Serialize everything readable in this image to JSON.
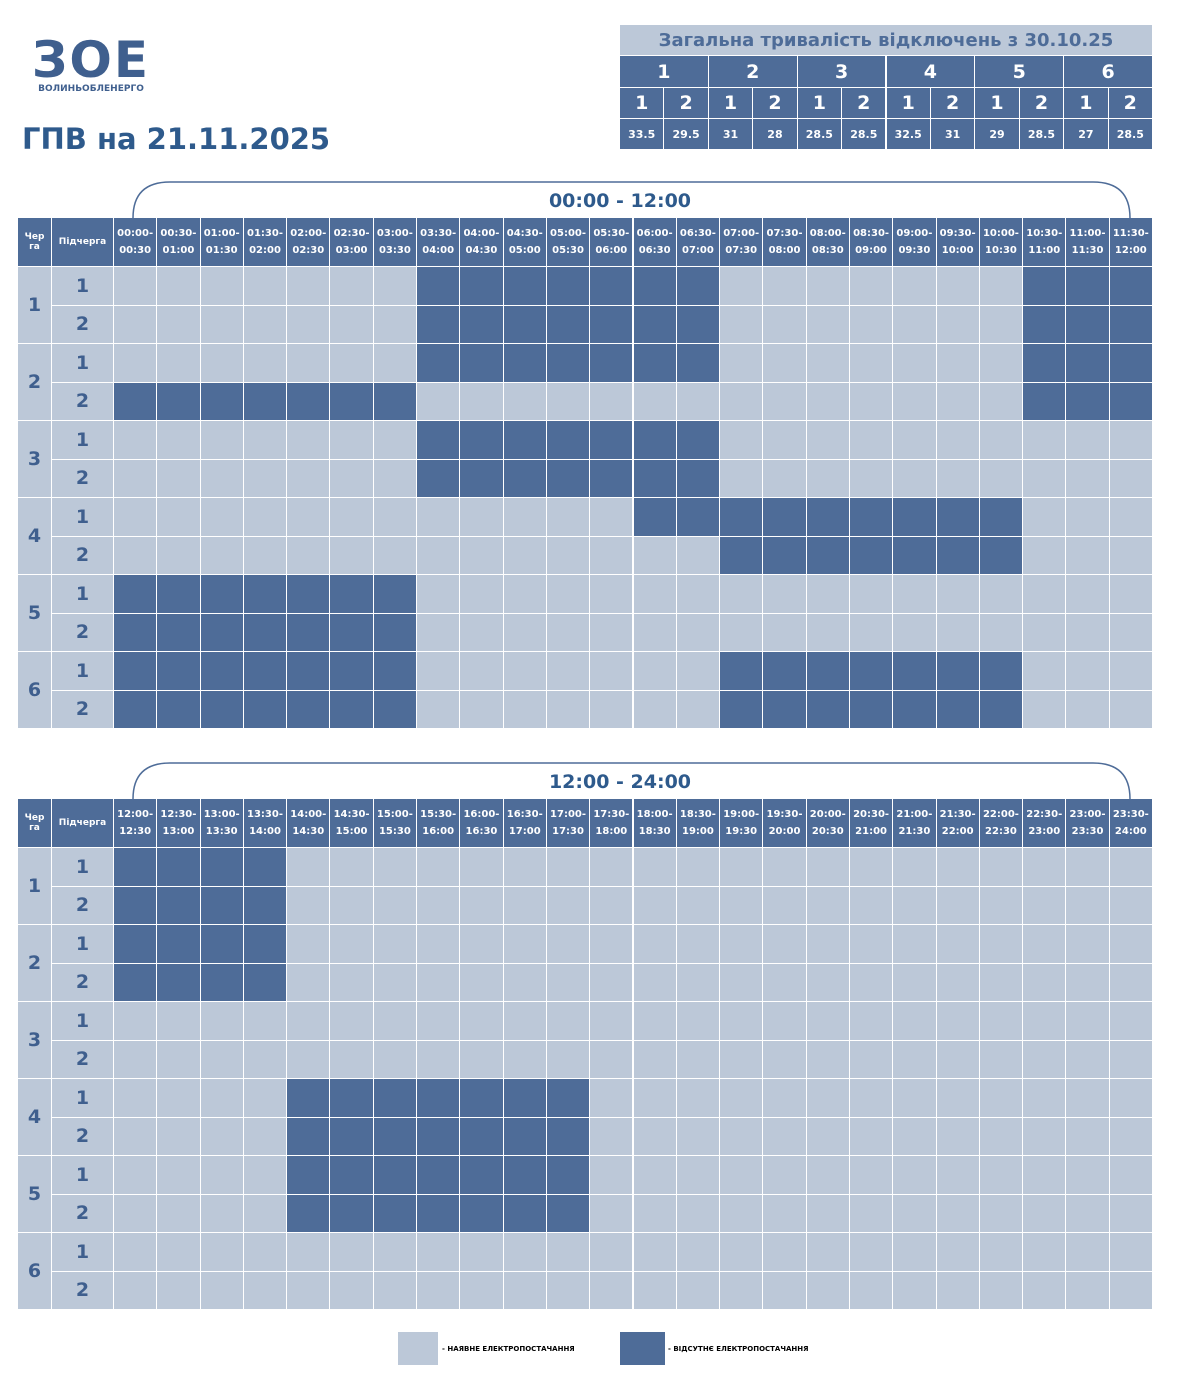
{
  "logo": {
    "mark": "ЗОЕ",
    "name": "ВОЛИНЬОБЛЕНЕРГО"
  },
  "title": "ГПВ на 21.11.2025",
  "summary": {
    "title": "Загальна тривалість відключень з 30.10.25",
    "groups": [
      {
        "queue": "1",
        "subs": [
          "1",
          "2"
        ],
        "values": [
          33.5,
          29.5
        ]
      },
      {
        "queue": "2",
        "subs": [
          "1",
          "2"
        ],
        "values": [
          31,
          28
        ]
      },
      {
        "queue": "3",
        "subs": [
          "1",
          "2"
        ],
        "values": [
          28.5,
          28.5
        ]
      },
      {
        "queue": "4",
        "subs": [
          "1",
          "2"
        ],
        "values": [
          32.5,
          31
        ]
      },
      {
        "queue": "5",
        "subs": [
          "1",
          "2"
        ],
        "values": [
          29,
          28.5
        ]
      },
      {
        "queue": "6",
        "subs": [
          "1",
          "2"
        ],
        "values": [
          27,
          28.5
        ]
      }
    ]
  },
  "halves": [
    {
      "range": "00:00 - 12:00",
      "queue_header": "Черга",
      "sub_header": "Підчерга",
      "slots": [
        "00:00-00:30",
        "00:30-01:00",
        "01:00-01:30",
        "01:30-02:00",
        "02:00-02:30",
        "02:30-03:00",
        "03:00-03:30",
        "03:30-04:00",
        "04:00-04:30",
        "04:30-05:00",
        "05:00-05:30",
        "05:30-06:00",
        "06:00-06:30",
        "06:30-07:00",
        "07:00-07:30",
        "07:30-08:00",
        "08:00-08:30",
        "08:30-09:00",
        "09:00-09:30",
        "09:30-10:00",
        "10:00-10:30",
        "10:30-11:00",
        "11:00-11:30",
        "11:30-12:00"
      ],
      "queues": [
        {
          "label": "1",
          "subs": [
            {
              "label": "1",
              "off": [
                0,
                0,
                0,
                0,
                0,
                0,
                0,
                1,
                1,
                1,
                1,
                1,
                1,
                1,
                0,
                0,
                0,
                0,
                0,
                0,
                0,
                1,
                1,
                1
              ]
            },
            {
              "label": "2",
              "off": [
                0,
                0,
                0,
                0,
                0,
                0,
                0,
                1,
                1,
                1,
                1,
                1,
                1,
                1,
                0,
                0,
                0,
                0,
                0,
                0,
                0,
                1,
                1,
                1
              ]
            }
          ]
        },
        {
          "label": "2",
          "subs": [
            {
              "label": "1",
              "off": [
                0,
                0,
                0,
                0,
                0,
                0,
                0,
                1,
                1,
                1,
                1,
                1,
                1,
                1,
                0,
                0,
                0,
                0,
                0,
                0,
                0,
                1,
                1,
                1
              ]
            },
            {
              "label": "2",
              "off": [
                1,
                1,
                1,
                1,
                1,
                1,
                1,
                0,
                0,
                0,
                0,
                0,
                0,
                0,
                0,
                0,
                0,
                0,
                0,
                0,
                0,
                1,
                1,
                1
              ]
            }
          ]
        },
        {
          "label": "3",
          "subs": [
            {
              "label": "1",
              "off": [
                0,
                0,
                0,
                0,
                0,
                0,
                0,
                1,
                1,
                1,
                1,
                1,
                1,
                1,
                0,
                0,
                0,
                0,
                0,
                0,
                0,
                0,
                0,
                0
              ]
            },
            {
              "label": "2",
              "off": [
                0,
                0,
                0,
                0,
                0,
                0,
                0,
                1,
                1,
                1,
                1,
                1,
                1,
                1,
                0,
                0,
                0,
                0,
                0,
                0,
                0,
                0,
                0,
                0
              ]
            }
          ]
        },
        {
          "label": "4",
          "subs": [
            {
              "label": "1",
              "off": [
                0,
                0,
                0,
                0,
                0,
                0,
                0,
                0,
                0,
                0,
                0,
                0,
                1,
                1,
                1,
                1,
                1,
                1,
                1,
                1,
                1,
                0,
                0,
                0
              ]
            },
            {
              "label": "2",
              "off": [
                0,
                0,
                0,
                0,
                0,
                0,
                0,
                0,
                0,
                0,
                0,
                0,
                0,
                0,
                1,
                1,
                1,
                1,
                1,
                1,
                1,
                0,
                0,
                0
              ]
            }
          ]
        },
        {
          "label": "5",
          "subs": [
            {
              "label": "1",
              "off": [
                1,
                1,
                1,
                1,
                1,
                1,
                1,
                0,
                0,
                0,
                0,
                0,
                0,
                0,
                0,
                0,
                0,
                0,
                0,
                0,
                0,
                0,
                0,
                0
              ]
            },
            {
              "label": "2",
              "off": [
                1,
                1,
                1,
                1,
                1,
                1,
                1,
                0,
                0,
                0,
                0,
                0,
                0,
                0,
                0,
                0,
                0,
                0,
                0,
                0,
                0,
                0,
                0,
                0
              ]
            }
          ]
        },
        {
          "label": "6",
          "subs": [
            {
              "label": "1",
              "off": [
                1,
                1,
                1,
                1,
                1,
                1,
                1,
                0,
                0,
                0,
                0,
                0,
                0,
                0,
                1,
                1,
                1,
                1,
                1,
                1,
                1,
                0,
                0,
                0
              ]
            },
            {
              "label": "2",
              "off": [
                1,
                1,
                1,
                1,
                1,
                1,
                1,
                0,
                0,
                0,
                0,
                0,
                0,
                0,
                1,
                1,
                1,
                1,
                1,
                1,
                1,
                0,
                0,
                0
              ]
            }
          ]
        }
      ]
    },
    {
      "range": "12:00 - 24:00",
      "queue_header": "Черга",
      "sub_header": "Підчерга",
      "slots": [
        "12:00-12:30",
        "12:30-13:00",
        "13:00-13:30",
        "13:30-14:00",
        "14:00-14:30",
        "14:30-15:00",
        "15:00-15:30",
        "15:30-16:00",
        "16:00-16:30",
        "16:30-17:00",
        "17:00-17:30",
        "17:30-18:00",
        "18:00-18:30",
        "18:30-19:00",
        "19:00-19:30",
        "19:30-20:00",
        "20:00-20:30",
        "20:30-21:00",
        "21:00-21:30",
        "21:30-22:00",
        "22:00-22:30",
        "22:30-23:00",
        "23:00-23:30",
        "23:30-24:00"
      ],
      "queues": [
        {
          "label": "1",
          "subs": [
            {
              "label": "1",
              "off": [
                1,
                1,
                1,
                1,
                0,
                0,
                0,
                0,
                0,
                0,
                0,
                0,
                0,
                0,
                0,
                0,
                0,
                0,
                0,
                0,
                0,
                0,
                0,
                0
              ]
            },
            {
              "label": "2",
              "off": [
                1,
                1,
                1,
                1,
                0,
                0,
                0,
                0,
                0,
                0,
                0,
                0,
                0,
                0,
                0,
                0,
                0,
                0,
                0,
                0,
                0,
                0,
                0,
                0
              ]
            }
          ]
        },
        {
          "label": "2",
          "subs": [
            {
              "label": "1",
              "off": [
                1,
                1,
                1,
                1,
                0,
                0,
                0,
                0,
                0,
                0,
                0,
                0,
                0,
                0,
                0,
                0,
                0,
                0,
                0,
                0,
                0,
                0,
                0,
                0
              ]
            },
            {
              "label": "2",
              "off": [
                1,
                1,
                1,
                1,
                0,
                0,
                0,
                0,
                0,
                0,
                0,
                0,
                0,
                0,
                0,
                0,
                0,
                0,
                0,
                0,
                0,
                0,
                0,
                0
              ]
            }
          ]
        },
        {
          "label": "3",
          "subs": [
            {
              "label": "1",
              "off": [
                0,
                0,
                0,
                0,
                0,
                0,
                0,
                0,
                0,
                0,
                0,
                0,
                0,
                0,
                0,
                0,
                0,
                0,
                0,
                0,
                0,
                0,
                0,
                0
              ]
            },
            {
              "label": "2",
              "off": [
                0,
                0,
                0,
                0,
                0,
                0,
                0,
                0,
                0,
                0,
                0,
                0,
                0,
                0,
                0,
                0,
                0,
                0,
                0,
                0,
                0,
                0,
                0,
                0
              ]
            }
          ]
        },
        {
          "label": "4",
          "subs": [
            {
              "label": "1",
              "off": [
                0,
                0,
                0,
                0,
                1,
                1,
                1,
                1,
                1,
                1,
                1,
                0,
                0,
                0,
                0,
                0,
                0,
                0,
                0,
                0,
                0,
                0,
                0,
                0
              ]
            },
            {
              "label": "2",
              "off": [
                0,
                0,
                0,
                0,
                1,
                1,
                1,
                1,
                1,
                1,
                1,
                0,
                0,
                0,
                0,
                0,
                0,
                0,
                0,
                0,
                0,
                0,
                0,
                0
              ]
            }
          ]
        },
        {
          "label": "5",
          "subs": [
            {
              "label": "1",
              "off": [
                0,
                0,
                0,
                0,
                1,
                1,
                1,
                1,
                1,
                1,
                1,
                0,
                0,
                0,
                0,
                0,
                0,
                0,
                0,
                0,
                0,
                0,
                0,
                0
              ]
            },
            {
              "label": "2",
              "off": [
                0,
                0,
                0,
                0,
                1,
                1,
                1,
                1,
                1,
                1,
                1,
                0,
                0,
                0,
                0,
                0,
                0,
                0,
                0,
                0,
                0,
                0,
                0,
                0
              ]
            }
          ]
        },
        {
          "label": "6",
          "subs": [
            {
              "label": "1",
              "off": [
                0,
                0,
                0,
                0,
                0,
                0,
                0,
                0,
                0,
                0,
                0,
                0,
                0,
                0,
                0,
                0,
                0,
                0,
                0,
                0,
                0,
                0,
                0,
                0
              ]
            },
            {
              "label": "2",
              "off": [
                0,
                0,
                0,
                0,
                0,
                0,
                0,
                0,
                0,
                0,
                0,
                0,
                0,
                0,
                0,
                0,
                0,
                0,
                0,
                0,
                0,
                0,
                0,
                0
              ]
            }
          ]
        }
      ]
    }
  ],
  "legend": {
    "on": "- НАЯВНЕ ЕЛЕКТРОПОСТАЧАННЯ",
    "off": "- ВІДСУТНЄ ЕЛЕКТРОПОСТАЧАННЯ"
  }
}
